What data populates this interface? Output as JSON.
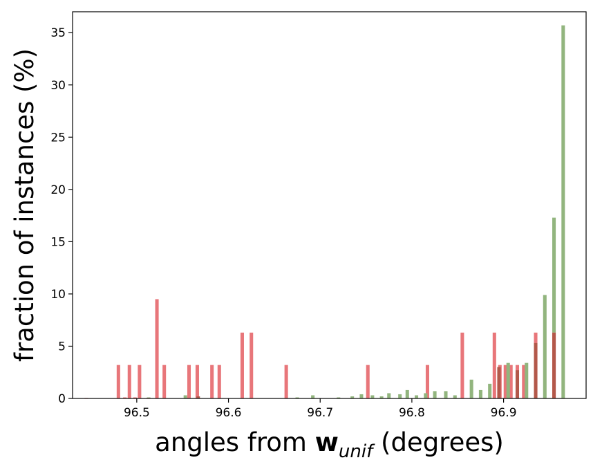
{
  "chart_data": {
    "type": "bar",
    "title": "",
    "xlabel": {
      "prefix": "angles from ",
      "bold": "w",
      "subscript": "unif",
      "suffix": " (degrees)"
    },
    "ylabel": "fraction of instances (%)",
    "xlim": [
      96.43,
      96.99
    ],
    "ylim": [
      0,
      37
    ],
    "xticks": [
      96.5,
      96.6,
      96.7,
      96.8,
      96.9
    ],
    "xtick_labels": [
      "96.5",
      "96.6",
      "96.7",
      "96.8",
      "96.9"
    ],
    "yticks": [
      0,
      5,
      10,
      15,
      20,
      25,
      30,
      35
    ],
    "ytick_labels": [
      "0",
      "5",
      "10",
      "15",
      "20",
      "25",
      "30",
      "35"
    ],
    "bar_width": 0.0038,
    "grid": false,
    "overlap_color": "#b3584a",
    "series": [
      {
        "color": "#e8767a",
        "x": [
          96.445,
          96.48,
          96.487,
          96.492,
          96.498,
          96.503,
          96.512,
          96.522,
          96.53,
          96.557,
          96.566,
          96.582,
          96.59,
          96.615,
          96.625,
          96.663,
          96.752,
          96.817,
          96.855,
          96.89,
          96.896,
          96.902,
          96.908,
          96.915,
          96.922,
          96.935,
          96.955
        ],
        "values": [
          0.05,
          3.2,
          0.1,
          3.2,
          0.1,
          3.2,
          0.05,
          9.5,
          3.2,
          3.2,
          3.2,
          3.2,
          3.2,
          6.3,
          6.3,
          3.2,
          3.2,
          3.2,
          6.3,
          6.3,
          3.2,
          3.2,
          3.2,
          3.2,
          3.2,
          6.3,
          6.3
        ]
      },
      {
        "color": "#92b57e",
        "x": [
          96.513,
          96.553,
          96.567,
          96.675,
          96.692,
          96.72,
          96.735,
          96.745,
          96.757,
          96.767,
          96.775,
          96.787,
          96.795,
          96.805,
          96.815,
          96.825,
          96.837,
          96.847,
          96.865,
          96.875,
          96.885,
          96.895,
          96.905,
          96.915,
          96.925,
          96.935,
          96.945,
          96.955,
          96.965
        ],
        "values": [
          0.1,
          0.3,
          0.2,
          0.1,
          0.3,
          0.1,
          0.2,
          0.4,
          0.3,
          0.2,
          0.5,
          0.4,
          0.8,
          0.3,
          0.5,
          0.7,
          0.7,
          0.3,
          1.8,
          0.8,
          1.4,
          3.0,
          3.4,
          2.7,
          3.4,
          5.3,
          9.9,
          17.3,
          35.7
        ]
      }
    ]
  }
}
